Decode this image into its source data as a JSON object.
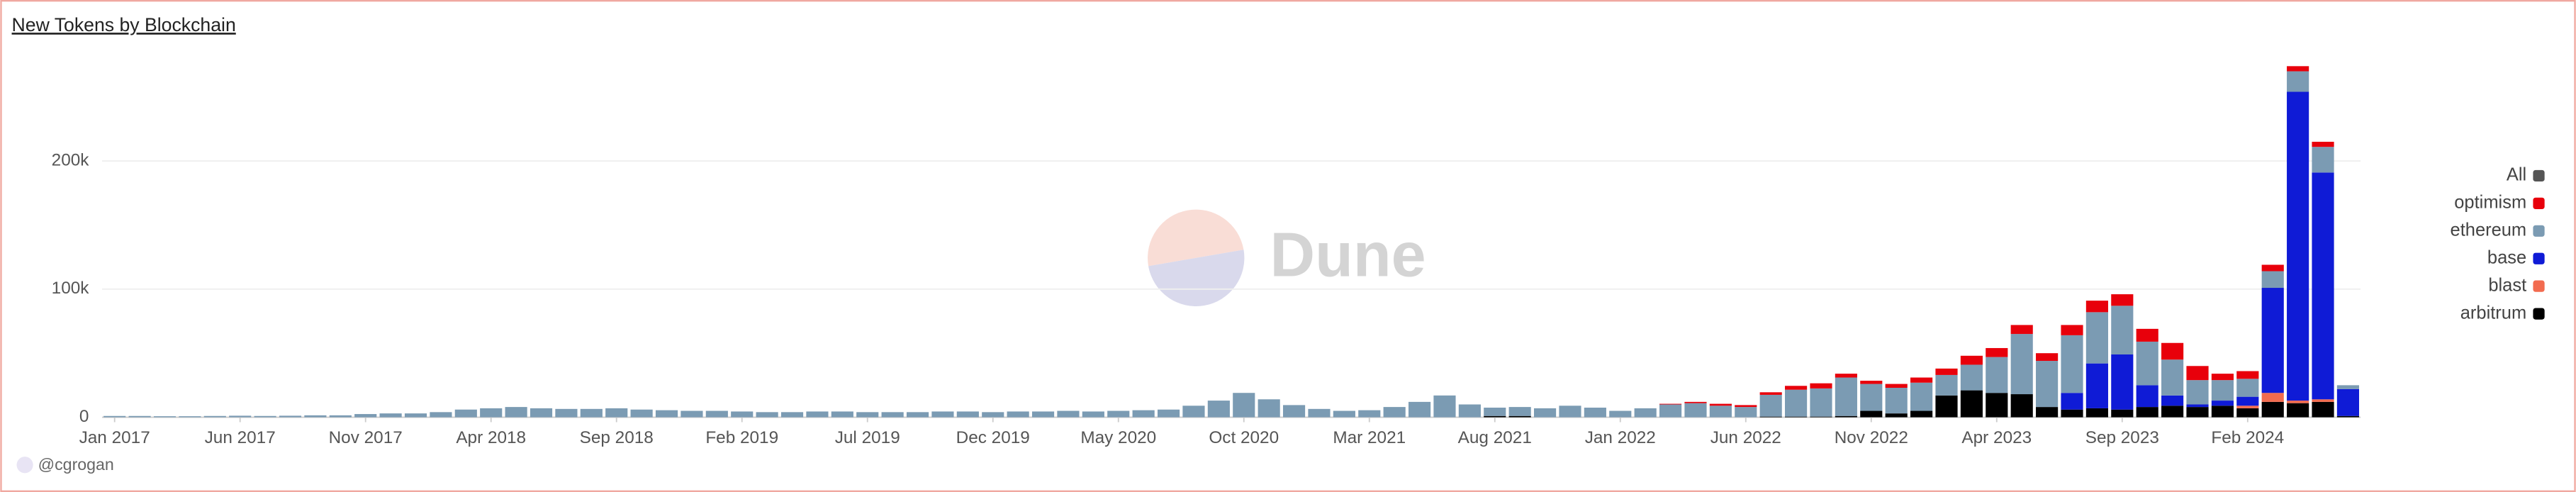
{
  "chart_data": {
    "type": "bar",
    "stacked": true,
    "title": "New Tokens by Blockchain",
    "watermark": "Dune",
    "author": "@cgrogan",
    "legend_toggle": {
      "label": "All",
      "color": "#555555"
    },
    "legend_position": "right",
    "grid": true,
    "categories": [
      "Jan 2017",
      null,
      null,
      null,
      null,
      "Jun 2017",
      null,
      null,
      null,
      null,
      "Nov 2017",
      null,
      null,
      null,
      null,
      "Apr 2018",
      null,
      null,
      null,
      null,
      "Sep 2018",
      null,
      null,
      null,
      null,
      "Feb 2019",
      null,
      null,
      null,
      null,
      "Jul 2019",
      null,
      null,
      null,
      null,
      "Dec 2019",
      null,
      null,
      null,
      null,
      "May 2020",
      null,
      null,
      null,
      null,
      "Oct 2020",
      null,
      null,
      null,
      null,
      "Mar 2021",
      null,
      null,
      null,
      null,
      "Aug 2021",
      null,
      null,
      null,
      null,
      "Jan 2022",
      null,
      null,
      null,
      null,
      "Jun 2022",
      null,
      null,
      null,
      null,
      "Nov 2022",
      null,
      null,
      null,
      null,
      "Apr 2023",
      null,
      null,
      null,
      null,
      "Sep 2023",
      null,
      null,
      null,
      null,
      "Feb 2024",
      null,
      null,
      null,
      null
    ],
    "ylim": [
      0,
      290000
    ],
    "yticks": [
      0,
      {
        "value": 100000,
        "label": "100k"
      },
      {
        "value": 200000,
        "label": "200k"
      }
    ],
    "series": [
      {
        "name": "optimism",
        "color": "#e8000b",
        "values": [
          0,
          0,
          0,
          0,
          0,
          0,
          0,
          0,
          0,
          0,
          0,
          0,
          0,
          0,
          0,
          0,
          0,
          0,
          0,
          0,
          0,
          0,
          0,
          0,
          0,
          0,
          0,
          0,
          0,
          0,
          0,
          0,
          0,
          0,
          0,
          0,
          0,
          0,
          0,
          0,
          0,
          0,
          0,
          0,
          0,
          0,
          0,
          0,
          0,
          0,
          0,
          0,
          0,
          0,
          0,
          0,
          0,
          0,
          0,
          0,
          0,
          0,
          500,
          1000,
          1500,
          1500,
          2000,
          3000,
          4000,
          3000,
          2500,
          3000,
          4000,
          5000,
          7000,
          7000,
          7000,
          6000,
          8000,
          9000,
          9000,
          10000,
          13000,
          11000,
          5000,
          6000,
          5000,
          4000,
          4000,
          0
        ]
      },
      {
        "name": "ethereum",
        "color": "#7b9bb3",
        "values": [
          1000,
          1000,
          800,
          800,
          1000,
          1200,
          1000,
          1200,
          1500,
          1500,
          2500,
          3000,
          3000,
          4000,
          6000,
          7000,
          8000,
          7000,
          6500,
          6500,
          7000,
          6000,
          5500,
          5000,
          5000,
          4500,
          4000,
          4000,
          4500,
          4500,
          4000,
          4000,
          4000,
          4500,
          4500,
          4000,
          4500,
          4500,
          5000,
          4500,
          5000,
          5500,
          6000,
          9000,
          13000,
          19000,
          14000,
          9500,
          6500,
          5000,
          5500,
          8000,
          12000,
          17000,
          10000,
          6500,
          7000,
          7000,
          9000,
          7500,
          5000,
          7000,
          10000,
          11000,
          9000,
          8000,
          17000,
          21000,
          22000,
          30000,
          21000,
          20000,
          22000,
          16000,
          20000,
          28000,
          47000,
          36000,
          45000,
          40000,
          38000,
          34000,
          28000,
          19000,
          16000,
          14000,
          13000,
          16000,
          20000,
          3000
        ]
      },
      {
        "name": "base",
        "color": "#0f1bd6",
        "values": [
          0,
          0,
          0,
          0,
          0,
          0,
          0,
          0,
          0,
          0,
          0,
          0,
          0,
          0,
          0,
          0,
          0,
          0,
          0,
          0,
          0,
          0,
          0,
          0,
          0,
          0,
          0,
          0,
          0,
          0,
          0,
          0,
          0,
          0,
          0,
          0,
          0,
          0,
          0,
          0,
          0,
          0,
          0,
          0,
          0,
          0,
          0,
          0,
          0,
          0,
          0,
          0,
          0,
          0,
          0,
          0,
          0,
          0,
          0,
          0,
          0,
          0,
          0,
          0,
          0,
          0,
          0,
          0,
          0,
          0,
          0,
          0,
          0,
          0,
          0,
          0,
          0,
          0,
          13000,
          35000,
          43000,
          17000,
          8000,
          2000,
          4000,
          7000,
          82000,
          241000,
          177000,
          21000
        ]
      },
      {
        "name": "blast",
        "color": "#f26b4f",
        "values": [
          0,
          0,
          0,
          0,
          0,
          0,
          0,
          0,
          0,
          0,
          0,
          0,
          0,
          0,
          0,
          0,
          0,
          0,
          0,
          0,
          0,
          0,
          0,
          0,
          0,
          0,
          0,
          0,
          0,
          0,
          0,
          0,
          0,
          0,
          0,
          0,
          0,
          0,
          0,
          0,
          0,
          0,
          0,
          0,
          0,
          0,
          0,
          0,
          0,
          0,
          0,
          0,
          0,
          0,
          0,
          0,
          0,
          0,
          0,
          0,
          0,
          0,
          0,
          0,
          0,
          0,
          0,
          0,
          0,
          0,
          0,
          0,
          0,
          0,
          0,
          0,
          0,
          0,
          0,
          0,
          0,
          0,
          0,
          0,
          0,
          2000,
          7000,
          2000,
          2000,
          0
        ]
      },
      {
        "name": "arbitrum",
        "color": "#000000",
        "values": [
          0,
          0,
          0,
          0,
          0,
          0,
          0,
          0,
          0,
          0,
          0,
          0,
          0,
          0,
          0,
          0,
          0,
          0,
          0,
          0,
          0,
          0,
          0,
          0,
          0,
          0,
          0,
          0,
          0,
          0,
          0,
          0,
          0,
          0,
          0,
          0,
          0,
          0,
          0,
          0,
          0,
          0,
          0,
          0,
          0,
          0,
          0,
          0,
          0,
          0,
          0,
          0,
          0,
          0,
          0,
          1000,
          1000,
          0,
          0,
          0,
          0,
          0,
          0,
          0,
          0,
          0,
          500,
          500,
          500,
          1000,
          5000,
          3000,
          5000,
          17000,
          21000,
          19000,
          18000,
          8000,
          6000,
          7000,
          6000,
          8000,
          9000,
          8000,
          9000,
          7000,
          12000,
          11000,
          12000,
          1000
        ]
      }
    ]
  }
}
